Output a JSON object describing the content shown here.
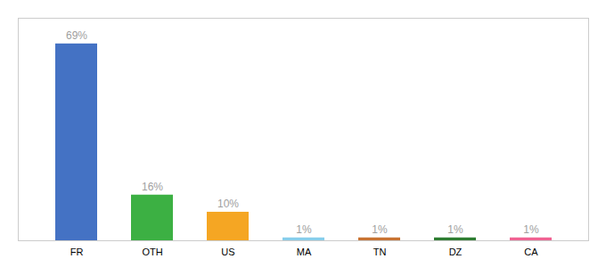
{
  "chart_data": {
    "type": "bar",
    "categories": [
      "FR",
      "OTH",
      "US",
      "MA",
      "TN",
      "DZ",
      "CA"
    ],
    "values": [
      69,
      16,
      10,
      1,
      1,
      1,
      1
    ],
    "value_labels": [
      "69%",
      "16%",
      "10%",
      "1%",
      "1%",
      "1%",
      "1%"
    ],
    "colors": [
      "#4472c4",
      "#3cb043",
      "#f5a623",
      "#87ceeb",
      "#c87333",
      "#2e7d32",
      "#f06292"
    ],
    "ylim": [
      0,
      78
    ],
    "data_labels": true,
    "tick_labels": "x",
    "grid": false
  }
}
